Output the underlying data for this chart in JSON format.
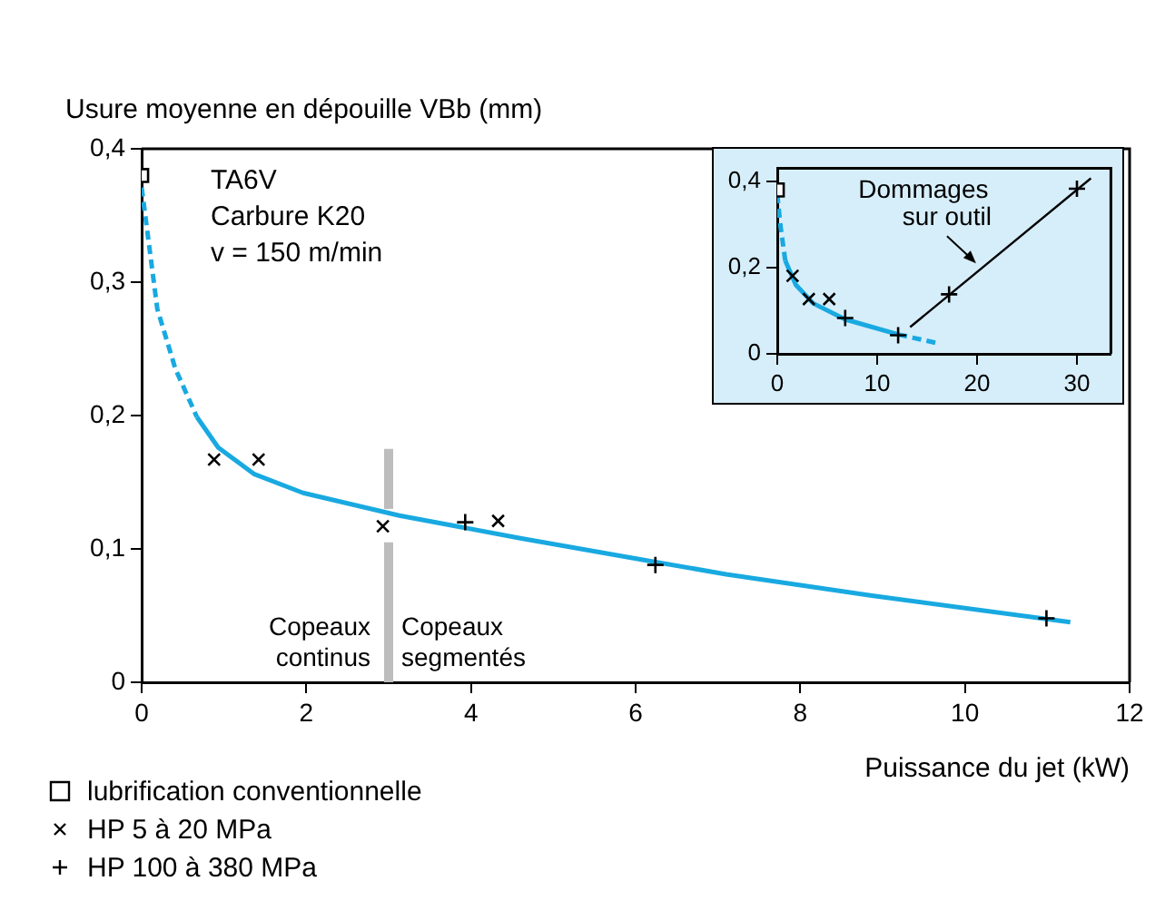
{
  "chart_data": [
    {
      "type": "scatter",
      "ylabel": "Usure moyenne en dépouille VBb (mm)",
      "xlabel": "Puissance du jet (kW)",
      "xlim": [
        0,
        12
      ],
      "xticks": [
        0,
        2,
        4,
        6,
        8,
        10,
        12
      ],
      "ylim": [
        0,
        0.4
      ],
      "yticks": [
        0,
        {
          "value": 0.1,
          "label": "0,1"
        },
        {
          "value": 0.2,
          "label": "0,2"
        },
        {
          "value": 0.3,
          "label": "0,3"
        },
        {
          "value": 0.4,
          "label": "0,4"
        }
      ],
      "grid": false,
      "legend": "bottom left",
      "annotations": [
        "TA6V",
        "Carbure K20",
        "v = 150 m/min",
        "Copeaux continus",
        "Copeaux segmentés"
      ],
      "series": [
        {
          "name": "lubrification conventionnelle",
          "marker": "square",
          "color": "#000000",
          "x": [
            0
          ],
          "values": [
            0.38
          ]
        },
        {
          "name": "HP 5 à 20 MPa",
          "marker": "x",
          "color": "#000000",
          "x": [
            0.88,
            1.42,
            2.93,
            4.33
          ],
          "values": [
            0.167,
            0.167,
            0.117,
            0.121
          ]
        },
        {
          "name": "HP 100 à 380 MPa",
          "marker": "cross",
          "color": "#000000",
          "x": [
            3.93,
            6.24,
            10.99
          ],
          "values": [
            0.12,
            0.088,
            0.048
          ]
        },
        {
          "type": "line",
          "marker": "none",
          "line_style": "dashed",
          "color": "#19a9e1",
          "x": [
            0,
            0.19,
            0.41,
            0.67
          ],
          "values": [
            0.371,
            0.28,
            0.235,
            0.199
          ]
        },
        {
          "type": "line",
          "marker": "none",
          "line_style": "solid",
          "color": "#19a9e1",
          "x": [
            0.67,
            0.93,
            1.37,
            1.96,
            3.13,
            4.6,
            6.07,
            7.1,
            8.87,
            11.28
          ],
          "values": [
            0.199,
            0.176,
            0.156,
            0.142,
            0.125,
            0.108,
            0.092,
            0.081,
            0.065,
            0.045
          ]
        },
        {
          "type": "line",
          "marker": "none",
          "line_style": "solid",
          "color": "#bdbdbd",
          "x": [
            3,
            3
          ],
          "values": [
            0,
            0.105
          ]
        },
        {
          "type": "line",
          "marker": "none",
          "line_style": "solid",
          "color": "#bdbdbd",
          "x": [
            3,
            3
          ],
          "values": [
            0.13,
            0.175
          ]
        }
      ]
    },
    {
      "type": "scatter",
      "xlim": [
        0,
        33.4
      ],
      "xticks": [
        0,
        10,
        20,
        30
      ],
      "ylim": [
        0,
        0.43
      ],
      "yticks": [
        0,
        {
          "value": 0.2,
          "label": "0,2"
        },
        {
          "value": 0.4,
          "label": "0,4"
        }
      ],
      "grid": false,
      "annotations": [
        {
          "text": "Dommages sur outil",
          "x": 19.9,
          "y": 0.21
        }
      ],
      "series": [
        {
          "marker": "square",
          "color": "#000000",
          "x": [
            0
          ],
          "values": [
            0.38
          ]
        },
        {
          "marker": "x",
          "color": "#000000",
          "x": [
            1.53,
            3.16,
            5.2
          ],
          "values": [
            0.181,
            0.127,
            0.127
          ]
        },
        {
          "marker": "cross",
          "color": "#000000",
          "x": [
            6.8,
            12.1,
            17.2,
            30
          ],
          "values": [
            0.083,
            0.043,
            0.138,
            0.383
          ]
        },
        {
          "type": "line",
          "marker": "none",
          "line_style": "dashed",
          "color": "#19a9e1",
          "x": [
            0,
            0.3,
            0.8
          ],
          "values": [
            0.37,
            0.3,
            0.216
          ]
        },
        {
          "type": "line",
          "marker": "none",
          "line_style": "solid",
          "color": "#19a9e1",
          "x": [
            0.8,
            1.86,
            3.6,
            6.8,
            12.1
          ],
          "values": [
            0.216,
            0.16,
            0.117,
            0.08,
            0.045
          ]
        },
        {
          "type": "line",
          "marker": "none",
          "line_style": "dashed",
          "color": "#19a9e1",
          "x": [
            12.1,
            16
          ],
          "values": [
            0.045,
            0.025
          ]
        },
        {
          "type": "line",
          "marker": "none",
          "line_style": "solid",
          "color": "#000000",
          "x": [
            13.3,
            31.4
          ],
          "values": [
            0.062,
            0.407
          ]
        }
      ]
    }
  ]
}
